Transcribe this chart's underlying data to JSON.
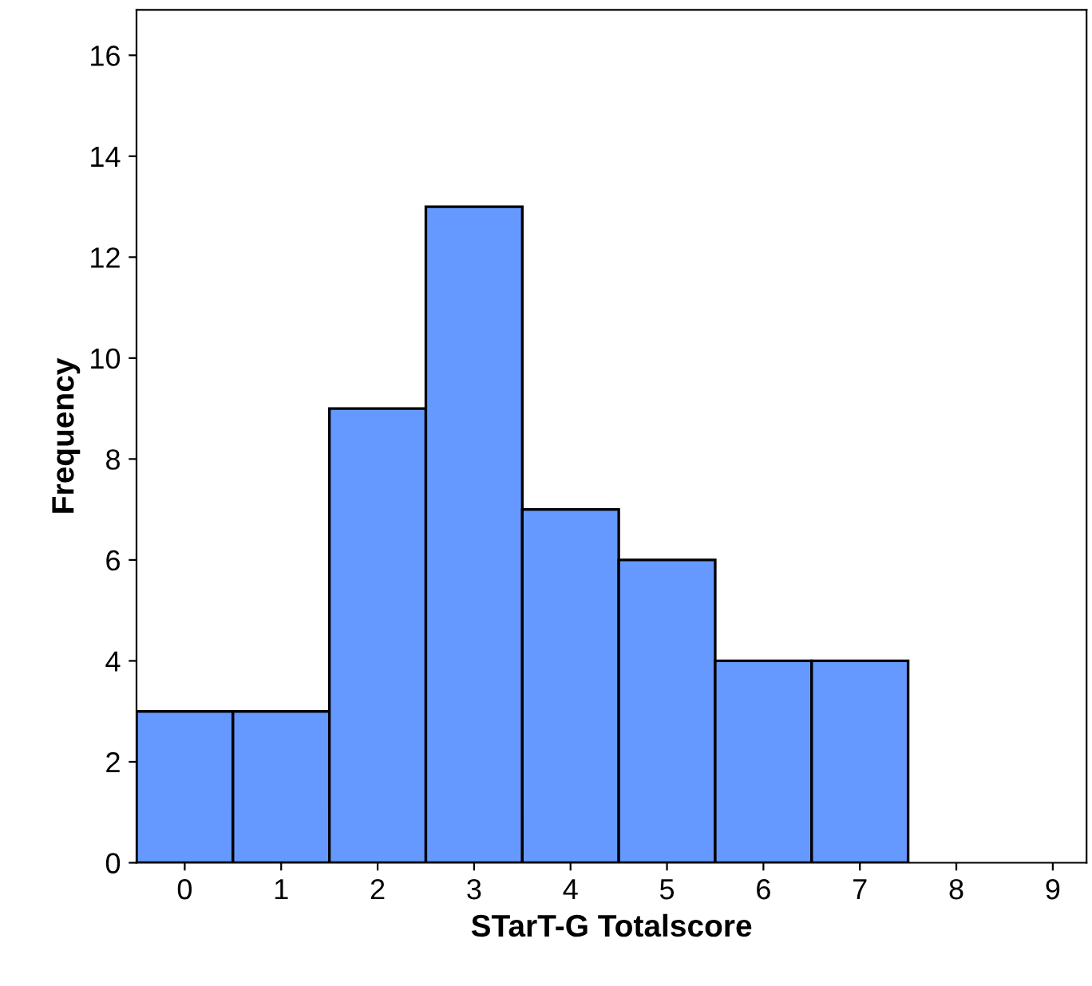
{
  "chart_data": {
    "type": "histogram",
    "xlabel": "STarT-G Totalscore",
    "ylabel": "Frequency",
    "bins": [
      -0.5,
      0.5,
      1.5,
      2.5,
      3.5,
      4.5,
      5.5,
      6.5,
      7.5
    ],
    "values": [
      3,
      3,
      9,
      13,
      7,
      6,
      4,
      4
    ],
    "color": "#6699ff",
    "xlim": [
      -0.5,
      9.35
    ],
    "xticks": [
      0,
      1,
      2,
      3,
      4,
      5,
      6,
      7,
      8,
      9
    ],
    "ylim": [
      0,
      16.9
    ],
    "yticks": [
      0,
      2,
      4,
      6,
      8,
      10,
      12,
      14,
      16
    ],
    "grid": false
  }
}
